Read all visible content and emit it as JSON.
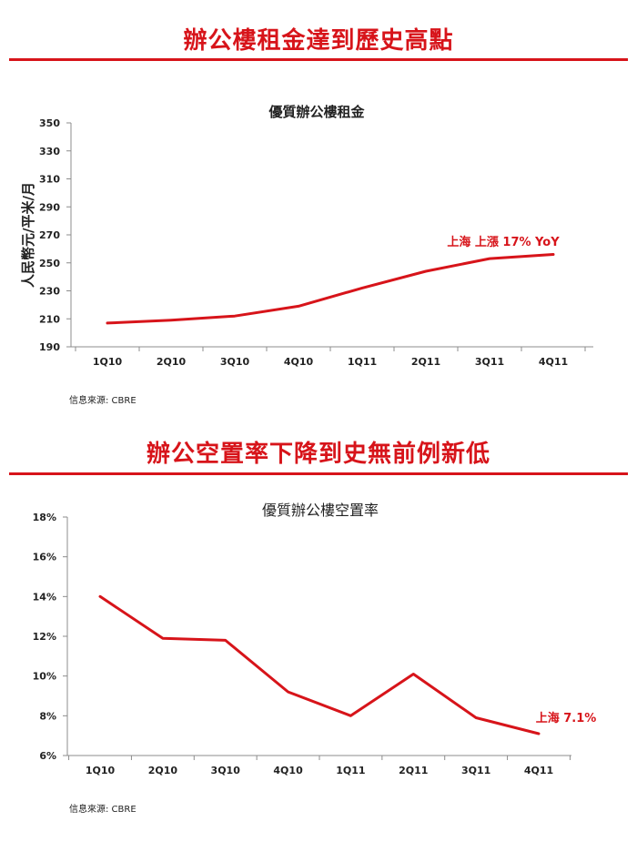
{
  "sections": [
    {
      "headline": "辦公樓租金達到歷史高點",
      "source": "信息來源: CBRE"
    },
    {
      "headline": "辦公空置率下降到史無前例新低",
      "source": "信息來源: CBRE"
    }
  ],
  "colors": {
    "accent": "#d7141a",
    "axis": "#8c8c8c",
    "text": "#222222"
  },
  "chart_data": [
    {
      "type": "line",
      "title": "優質辦公樓租金",
      "xlabel": "",
      "ylabel": "人民幣元/平米/月",
      "categories": [
        "1Q10",
        "2Q10",
        "3Q10",
        "4Q10",
        "1Q11",
        "2Q11",
        "3Q11",
        "4Q11"
      ],
      "ylim": [
        190,
        350
      ],
      "yticks": [
        "190",
        "210",
        "230",
        "250",
        "270",
        "290",
        "310",
        "330",
        "350"
      ],
      "series": [
        {
          "values": [
            207,
            209,
            212,
            219,
            232,
            244,
            253,
            256
          ]
        }
      ],
      "annotation": "上海 上漲 17% YoY",
      "grid": false,
      "legend": "none"
    },
    {
      "type": "line",
      "title": "優質辦公樓空置率",
      "xlabel": "",
      "ylabel": "",
      "categories": [
        "1Q10",
        "2Q10",
        "3Q10",
        "4Q10",
        "1Q11",
        "2Q11",
        "3Q11",
        "4Q11"
      ],
      "ylim": [
        6,
        18
      ],
      "yticks": [
        "6%",
        "8%",
        "10%",
        "12%",
        "14%",
        "16%",
        "18%"
      ],
      "series": [
        {
          "values": [
            14.0,
            11.9,
            11.8,
            9.2,
            8.0,
            10.1,
            7.9,
            7.1
          ]
        }
      ],
      "annotation": "上海 7.1%",
      "grid": false,
      "legend": "none"
    }
  ]
}
